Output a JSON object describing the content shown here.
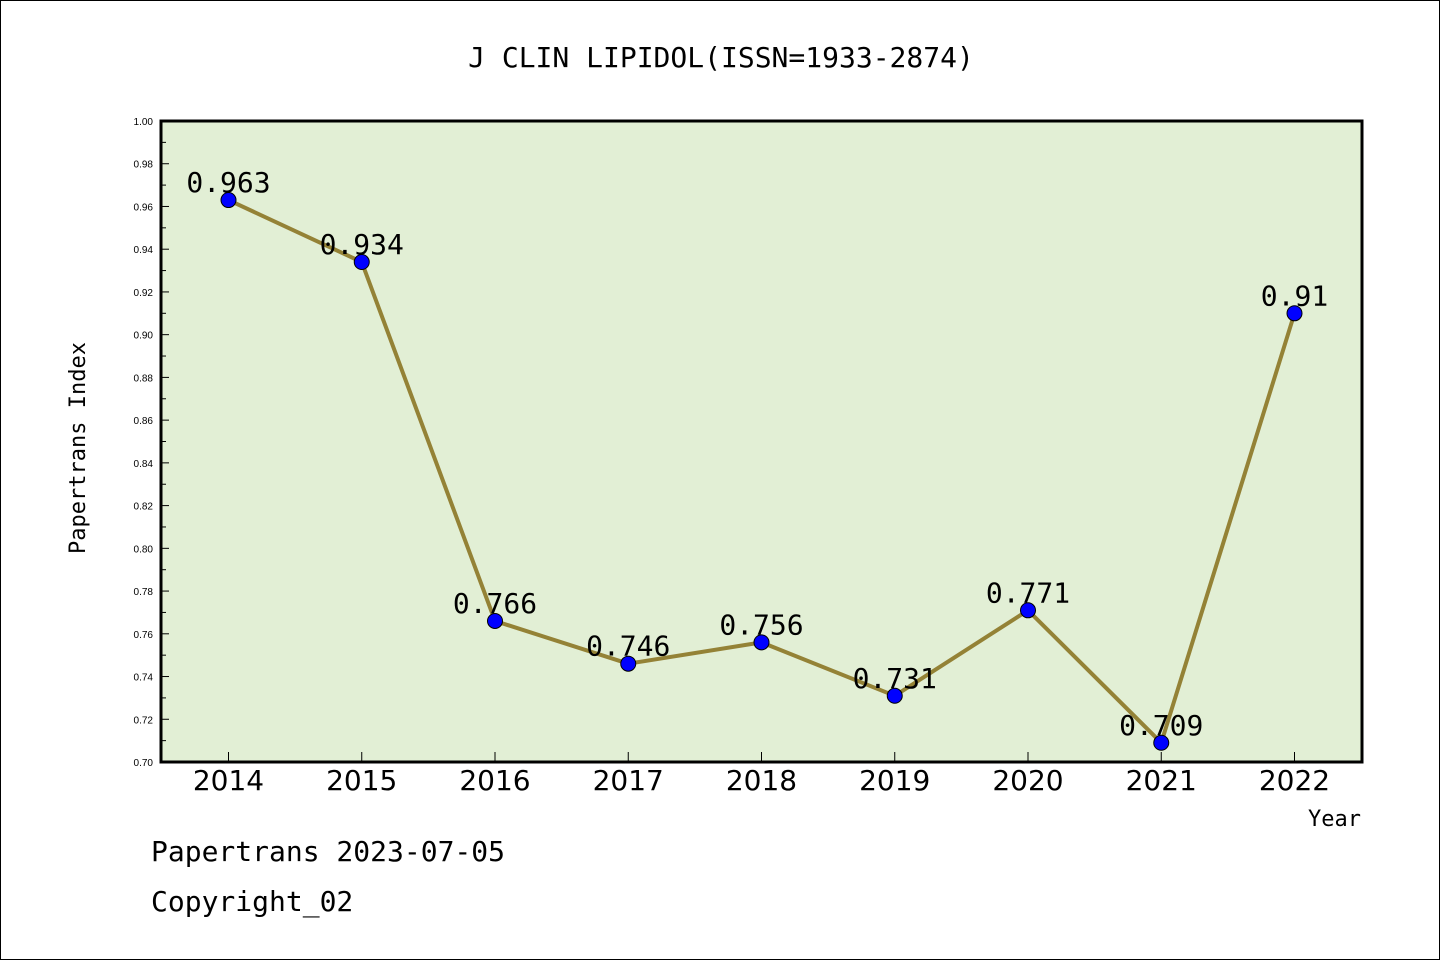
{
  "chart_data": {
    "type": "line",
    "title": "J CLIN LIPIDOL(ISSN=1933-2874)",
    "xlabel": "Year",
    "ylabel": "Papertrans Index",
    "categories": [
      "2014",
      "2015",
      "2016",
      "2017",
      "2018",
      "2019",
      "2020",
      "2021",
      "2022"
    ],
    "values": [
      0.963,
      0.934,
      0.766,
      0.746,
      0.756,
      0.731,
      0.771,
      0.709,
      0.91
    ],
    "data_labels": [
      "0.963",
      "0.934",
      "0.766",
      "0.746",
      "0.756",
      "0.731",
      "0.771",
      "0.709",
      "0.91"
    ],
    "ylim": [
      0.7,
      1.0
    ],
    "yticks": [
      "0.70",
      "0.72",
      "0.74",
      "0.76",
      "0.78",
      "0.80",
      "0.82",
      "0.84",
      "0.86",
      "0.88",
      "0.90",
      "0.92",
      "0.94",
      "0.96",
      "0.98",
      "1.00"
    ],
    "grid": false,
    "colors": {
      "plot_background": "#e2efd5",
      "line": "#948236",
      "marker": "#0000ff"
    }
  },
  "footer": {
    "date_line": "Papertrans 2023-07-05",
    "copyright": "Copyright_02"
  }
}
